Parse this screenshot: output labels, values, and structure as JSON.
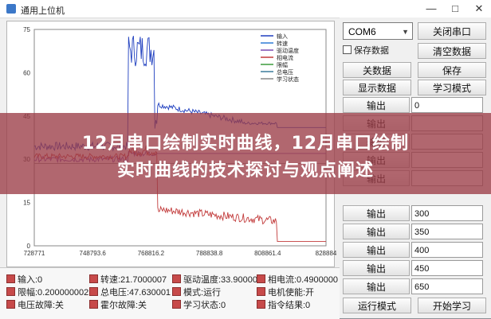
{
  "window": {
    "title": "通用上位机",
    "minimize": "—",
    "maximize": "□",
    "close": "✕"
  },
  "chart_data": {
    "type": "line",
    "x_ticks": [
      "728771",
      "748793.6",
      "768816.2",
      "788838.8",
      "808861.4",
      "828884"
    ],
    "y_ticks": [
      "0",
      "15",
      "30",
      "45",
      "60",
      "75"
    ],
    "ylim": [
      0,
      75
    ],
    "xlim": [
      728771,
      828884
    ],
    "legend_position": "top-right",
    "legend": [
      "输入",
      "转速",
      "驱动温度",
      "相电流",
      "限幅",
      "总电压",
      "学习状态"
    ],
    "series_colors": [
      "#1f3fbf",
      "#2e7bd6",
      "#7a4ab0",
      "#c23b3b",
      "#3a9a3a",
      "#3a7a9a",
      "#888888"
    ],
    "grid": true
  },
  "checks": [
    {
      "label": "输入:0"
    },
    {
      "label": "转速:21.7000007"
    },
    {
      "label": "驱动温度:33.90000"
    },
    {
      "label": "相电流:0.4900000"
    },
    {
      "label": "限幅:0.200000002"
    },
    {
      "label": "总电压:47.630001"
    },
    {
      "label": "模式:运行"
    },
    {
      "label": "电机使能:开"
    },
    {
      "label": "电压故障:关"
    },
    {
      "label": "霍尔故障:关"
    },
    {
      "label": "学习状态:0"
    },
    {
      "label": "指令结果:0"
    }
  ],
  "panel": {
    "port": "COM6",
    "close_port": "关闭串口",
    "save_data": "保存数据",
    "clear_data": "清空数据",
    "close_data": "关数据",
    "save": "保存",
    "show_data": "显示数据",
    "learn_mode": "学习模式",
    "outputs": [
      {
        "label": "输出",
        "value": "0"
      },
      {
        "label": "输出",
        "value": ""
      },
      {
        "label": "输出",
        "value": ""
      },
      {
        "label": "输出",
        "value": ""
      },
      {
        "label": "输出",
        "value": ""
      },
      {
        "label": "输出",
        "value": "300"
      },
      {
        "label": "输出",
        "value": "350"
      },
      {
        "label": "输出",
        "value": "400"
      },
      {
        "label": "输出",
        "value": "450"
      },
      {
        "label": "输出",
        "value": "650"
      }
    ],
    "run_mode": "运行模式",
    "start_learn": "开始学习"
  },
  "overlay": {
    "line1": "12月串口绘制实时曲线，12月串口绘制",
    "line2": "实时曲线的技术探讨与观点阐述"
  }
}
